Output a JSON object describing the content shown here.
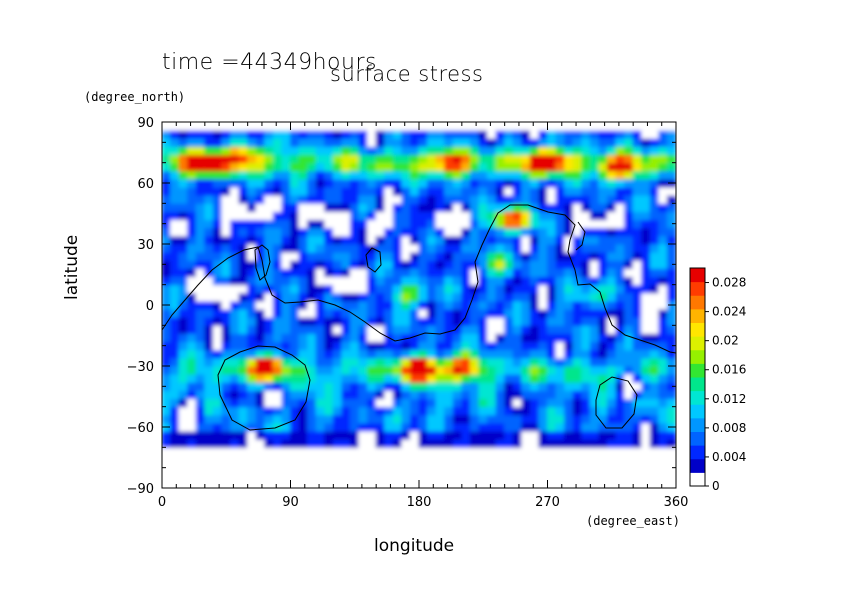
{
  "header": {
    "time_label": "time =44349hours"
  },
  "chart_data": {
    "type": "heatmap",
    "title": "surface stress",
    "xlabel": "longitude",
    "xlabel_unit": "(degree_east)",
    "ylabel": "latitude",
    "ylabel_unit": "(degree_north)",
    "xlim": [
      0,
      360
    ],
    "ylim": [
      -90,
      90
    ],
    "x_ticks": [
      0,
      90,
      180,
      270,
      360
    ],
    "y_ticks": [
      -90,
      -60,
      -30,
      0,
      30,
      60,
      90
    ],
    "colorbar": {
      "min": 0,
      "max": 0.03,
      "tick_labels": [
        "0",
        "0.004",
        "0.008",
        "0.012",
        "0.016",
        "0.02",
        "0.024",
        "0.028"
      ],
      "tick_values": [
        0,
        0.004,
        0.008,
        0.012,
        0.016,
        0.02,
        0.024,
        0.028
      ],
      "colors": [
        "#ffffff",
        "#0000c8",
        "#0028ff",
        "#0064ff",
        "#0096ff",
        "#00c8ff",
        "#00e6d2",
        "#00e68c",
        "#32e632",
        "#96f000",
        "#dcf000",
        "#ffe600",
        "#ffb400",
        "#ff7800",
        "#ff3c00",
        "#e60000"
      ]
    },
    "hotspots": [
      {
        "lon": 30,
        "lat": 70,
        "value": 0.029
      },
      {
        "lon": 60,
        "lat": 74,
        "value": 0.018
      },
      {
        "lon": 200,
        "lat": 70,
        "value": 0.02
      },
      {
        "lon": 270,
        "lat": 71,
        "value": 0.029
      },
      {
        "lon": 320,
        "lat": 67,
        "value": 0.022
      },
      {
        "lon": 245,
        "lat": 42,
        "value": 0.029
      },
      {
        "lon": 75,
        "lat": -30,
        "value": 0.028
      },
      {
        "lon": 180,
        "lat": -31,
        "value": 0.029
      },
      {
        "lon": 210,
        "lat": -30,
        "value": 0.024
      },
      {
        "lon": 175,
        "lat": 5,
        "value": 0.014
      },
      {
        "lon": 235,
        "lat": 20,
        "value": 0.012
      },
      {
        "lon": 300,
        "lat": 5,
        "value": 0.01
      }
    ]
  }
}
